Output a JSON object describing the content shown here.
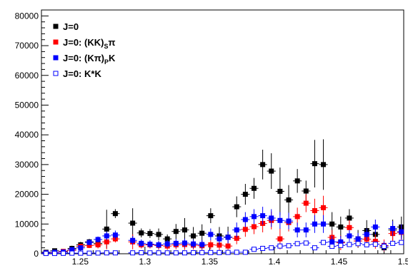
{
  "chart_data": {
    "type": "scatter",
    "xlim": [
      1.22,
      1.5
    ],
    "ylim": [
      0,
      82000
    ],
    "x_ticks": [
      1.25,
      1.3,
      1.35,
      1.4,
      1.45,
      1.5
    ],
    "x_tick_labels": [
      "1.25",
      "1.3",
      "1.35",
      "1.4",
      "1.45",
      "1.5"
    ],
    "y_ticks": [
      0,
      10000,
      20000,
      30000,
      40000,
      50000,
      60000,
      70000,
      80000
    ],
    "y_tick_labels": [
      "0",
      "10000",
      "20000",
      "30000",
      "40000",
      "50000",
      "60000",
      "70000",
      "80000"
    ],
    "legend_position": "top-left",
    "grid": false,
    "x_bin_half_width": 0.00335,
    "series": [
      {
        "name": "J=0",
        "color": "#000000",
        "marker": "filled-square",
        "x": [
          1.2235,
          1.2302,
          1.2369,
          1.2436,
          1.2503,
          1.257,
          1.2637,
          1.2704,
          1.2771,
          1.2905,
          1.2972,
          1.3039,
          1.3106,
          1.3173,
          1.324,
          1.3307,
          1.3374,
          1.3441,
          1.3508,
          1.3575,
          1.3642,
          1.3709,
          1.3776,
          1.3843,
          1.391,
          1.3977,
          1.4044,
          1.4111,
          1.4178,
          1.4245,
          1.4312,
          1.4379,
          1.4446,
          1.4513,
          1.458,
          1.4647,
          1.4714,
          1.4781,
          1.4848,
          1.4915,
          1.4982
        ],
        "y": [
          500,
          1000,
          600,
          1800,
          3000,
          4000,
          3500,
          8300,
          13500,
          10300,
          7000,
          6800,
          6500,
          5000,
          7500,
          8000,
          6000,
          6900,
          12800,
          6000,
          5600,
          15800,
          20000,
          22000,
          30000,
          27800,
          21000,
          18100,
          24500,
          21100,
          30300,
          30000,
          10000,
          9000,
          12000,
          5000,
          7800,
          6500,
          2000,
          8000,
          9000
        ],
        "err": [
          800,
          800,
          900,
          900,
          1000,
          1000,
          1500,
          6500,
          1500,
          5000,
          1500,
          1500,
          2000,
          1500,
          2500,
          4000,
          3000,
          3000,
          2500,
          3000,
          3500,
          3500,
          3500,
          3500,
          5000,
          6000,
          8000,
          5000,
          4000,
          3500,
          8000,
          8500,
          4000,
          3500,
          3000,
          3000,
          3500,
          3000,
          2500,
          3500,
          3500
        ]
      },
      {
        "name": "J=0: (KK)Sπ",
        "color": "#ff0000",
        "marker": "filled-square",
        "x": [
          1.2235,
          1.2302,
          1.2369,
          1.2436,
          1.2503,
          1.257,
          1.2637,
          1.2704,
          1.2771,
          1.2905,
          1.2972,
          1.3039,
          1.3106,
          1.3173,
          1.324,
          1.3307,
          1.3374,
          1.3441,
          1.3508,
          1.3575,
          1.3642,
          1.3709,
          1.3776,
          1.3843,
          1.391,
          1.3977,
          1.4044,
          1.4111,
          1.4178,
          1.4245,
          1.4312,
          1.4379,
          1.4446,
          1.4513,
          1.458,
          1.4647,
          1.4714,
          1.4781,
          1.4848,
          1.4915,
          1.4982
        ],
        "y": [
          300,
          400,
          800,
          1200,
          2500,
          2800,
          3000,
          4000,
          5000,
          4000,
          3000,
          3000,
          2800,
          2600,
          3000,
          3100,
          2900,
          2700,
          3000,
          2900,
          2600,
          5200,
          8200,
          9100,
          10200,
          11200,
          5000,
          10500,
          12500,
          17000,
          14500,
          15500,
          5500,
          3700,
          8800,
          4300,
          4900,
          4200,
          2800,
          6800,
          7200
        ],
        "err": [
          600,
          600,
          700,
          700,
          900,
          900,
          1200,
          2500,
          1200,
          2500,
          1200,
          1200,
          1500,
          1300,
          1500,
          1800,
          1500,
          1500,
          1500,
          1700,
          1800,
          2000,
          2500,
          2500,
          3000,
          3000,
          3500,
          3000,
          3000,
          3000,
          4000,
          4000,
          2500,
          2500,
          2500,
          2000,
          2500,
          2500,
          2000,
          2500,
          2500
        ]
      },
      {
        "name": "J=0: (Kπ)PK",
        "color": "#0000ff",
        "marker": "filled-square",
        "x": [
          1.2235,
          1.2302,
          1.2369,
          1.2436,
          1.2503,
          1.257,
          1.2637,
          1.2704,
          1.2771,
          1.2905,
          1.2972,
          1.3039,
          1.3106,
          1.3173,
          1.324,
          1.3307,
          1.3374,
          1.3441,
          1.3508,
          1.3575,
          1.3642,
          1.3709,
          1.3776,
          1.3843,
          1.391,
          1.3977,
          1.4044,
          1.4111,
          1.4178,
          1.4245,
          1.4312,
          1.4379,
          1.4446,
          1.4513,
          1.458,
          1.4647,
          1.4714,
          1.4781,
          1.4848,
          1.4915,
          1.4982
        ],
        "y": [
          300,
          500,
          600,
          1400,
          2000,
          3800,
          4800,
          6000,
          6300,
          4500,
          3500,
          3200,
          3000,
          3300,
          3500,
          3600,
          3300,
          3100,
          6500,
          5000,
          5500,
          8000,
          11500,
          12500,
          12800,
          12000,
          11200,
          11000,
          8000,
          8000,
          10000,
          10000,
          4000,
          4000,
          6000,
          5000,
          6500,
          9000,
          2600,
          8500,
          7400
        ],
        "err": [
          500,
          500,
          600,
          700,
          800,
          900,
          1000,
          1500,
          1500,
          1500,
          1300,
          1300,
          1300,
          1300,
          1500,
          1500,
          1500,
          1500,
          2000,
          2000,
          2000,
          2500,
          2500,
          2500,
          3000,
          3000,
          2800,
          2800,
          2500,
          2500,
          3000,
          3000,
          2000,
          2000,
          2000,
          2000,
          2000,
          2500,
          1500,
          2500,
          2500
        ]
      },
      {
        "name": "J=0: K*K",
        "color": "#0000ff",
        "marker": "open-square",
        "x": [
          1.2235,
          1.2302,
          1.2369,
          1.2436,
          1.2503,
          1.257,
          1.2637,
          1.2704,
          1.2771,
          1.2905,
          1.2972,
          1.3039,
          1.3106,
          1.3173,
          1.324,
          1.3307,
          1.3374,
          1.3441,
          1.3508,
          1.3575,
          1.3642,
          1.3709,
          1.3776,
          1.3843,
          1.391,
          1.3977,
          1.4044,
          1.4111,
          1.4178,
          1.4245,
          1.4312,
          1.4379,
          1.4446,
          1.4513,
          1.458,
          1.4647,
          1.4714,
          1.4781,
          1.4848,
          1.4915,
          1.4982
        ],
        "y": [
          100,
          100,
          150,
          200,
          200,
          200,
          250,
          300,
          300,
          300,
          350,
          300,
          300,
          300,
          300,
          300,
          350,
          400,
          400,
          400,
          450,
          500,
          500,
          1500,
          1800,
          2000,
          2600,
          2700,
          3400,
          3600,
          2000,
          3800,
          2500,
          2800,
          3100,
          3400,
          3000,
          3200,
          2500,
          3500,
          3800
        ],
        "err": [
          200,
          200,
          200,
          200,
          200,
          200,
          200,
          250,
          250,
          250,
          250,
          250,
          250,
          250,
          250,
          250,
          250,
          300,
          300,
          300,
          300,
          300,
          300,
          400,
          400,
          400,
          500,
          500,
          600,
          600,
          500,
          600,
          500,
          500,
          500,
          500,
          500,
          500,
          500,
          500,
          600
        ]
      }
    ]
  }
}
